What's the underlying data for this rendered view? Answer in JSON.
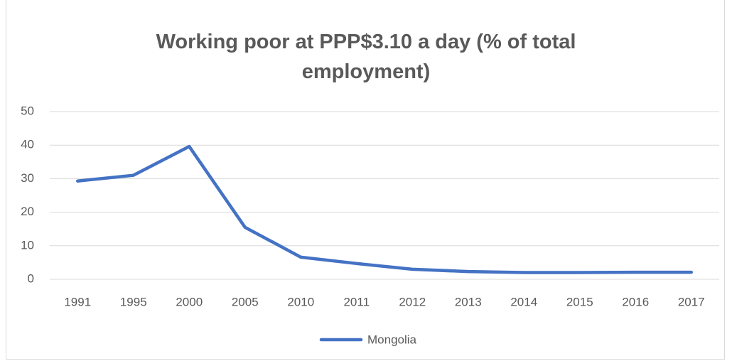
{
  "chart_data": {
    "type": "line",
    "title": "Working poor at PPP$3.10 a day (% of total employment)",
    "categories": [
      "1991",
      "1995",
      "2000",
      "2005",
      "2010",
      "2011",
      "2012",
      "2013",
      "2014",
      "2015",
      "2016",
      "2017"
    ],
    "series": [
      {
        "name": "Mongolia",
        "color": "#4472c4",
        "values": [
          29.3,
          31.0,
          39.6,
          15.5,
          6.6,
          4.7,
          3.0,
          2.3,
          2.0,
          2.0,
          2.1,
          2.1
        ]
      }
    ],
    "ylim": [
      0,
      50
    ],
    "yticks": [
      0,
      10,
      20,
      30,
      40,
      50
    ],
    "grid": true,
    "legend": "bottom"
  }
}
